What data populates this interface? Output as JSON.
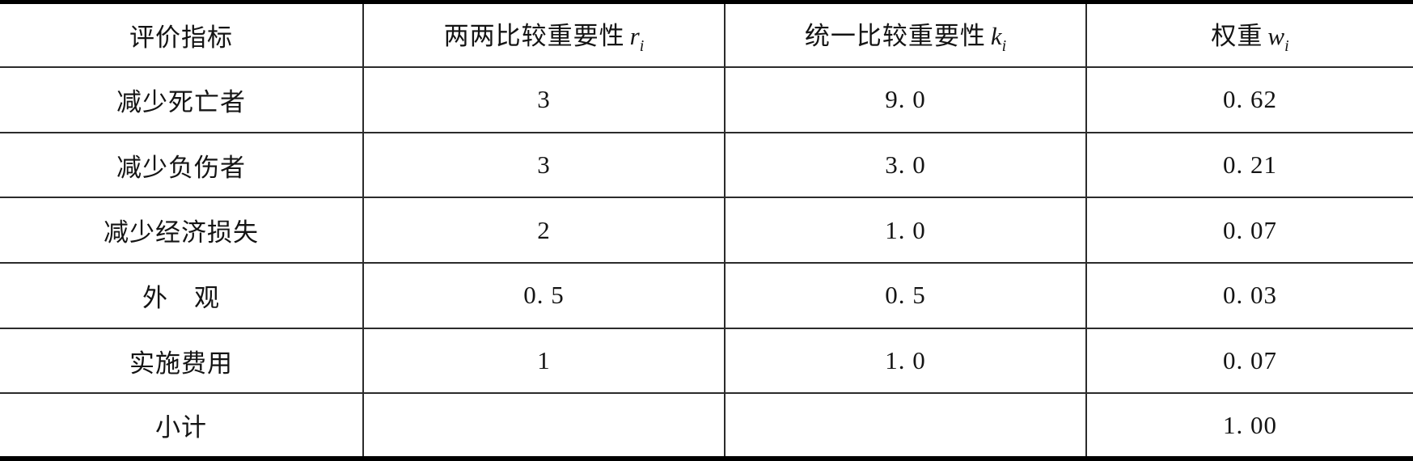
{
  "table": {
    "columns": [
      {
        "label": "评价指标",
        "var": "",
        "sub": ""
      },
      {
        "label": "两两比较重要性",
        "var": "r",
        "sub": "i"
      },
      {
        "label": "统一比较重要性",
        "var": "k",
        "sub": "i"
      },
      {
        "label": "权重",
        "var": "w",
        "sub": "i"
      }
    ],
    "rows": [
      {
        "indicator": "减少死亡者",
        "pairwise": "3",
        "unified": "9. 0",
        "weight": "0. 62"
      },
      {
        "indicator": "减少负伤者",
        "pairwise": "3",
        "unified": "3. 0",
        "weight": "0. 21"
      },
      {
        "indicator": "减少经济损失",
        "pairwise": "2",
        "unified": "1. 0",
        "weight": "0. 07"
      },
      {
        "indicator": "外　观",
        "pairwise": "0. 5",
        "unified": "0. 5",
        "weight": "0. 03"
      },
      {
        "indicator": "实施费用",
        "pairwise": "1",
        "unified": "1. 0",
        "weight": "0. 07"
      },
      {
        "indicator": "小计",
        "pairwise": "",
        "unified": "",
        "weight": "1. 00"
      }
    ]
  },
  "colors": {
    "text": "#141414",
    "inner_line": "#2b2b2b",
    "outer_border": "#000000",
    "background": "#ffffff"
  }
}
